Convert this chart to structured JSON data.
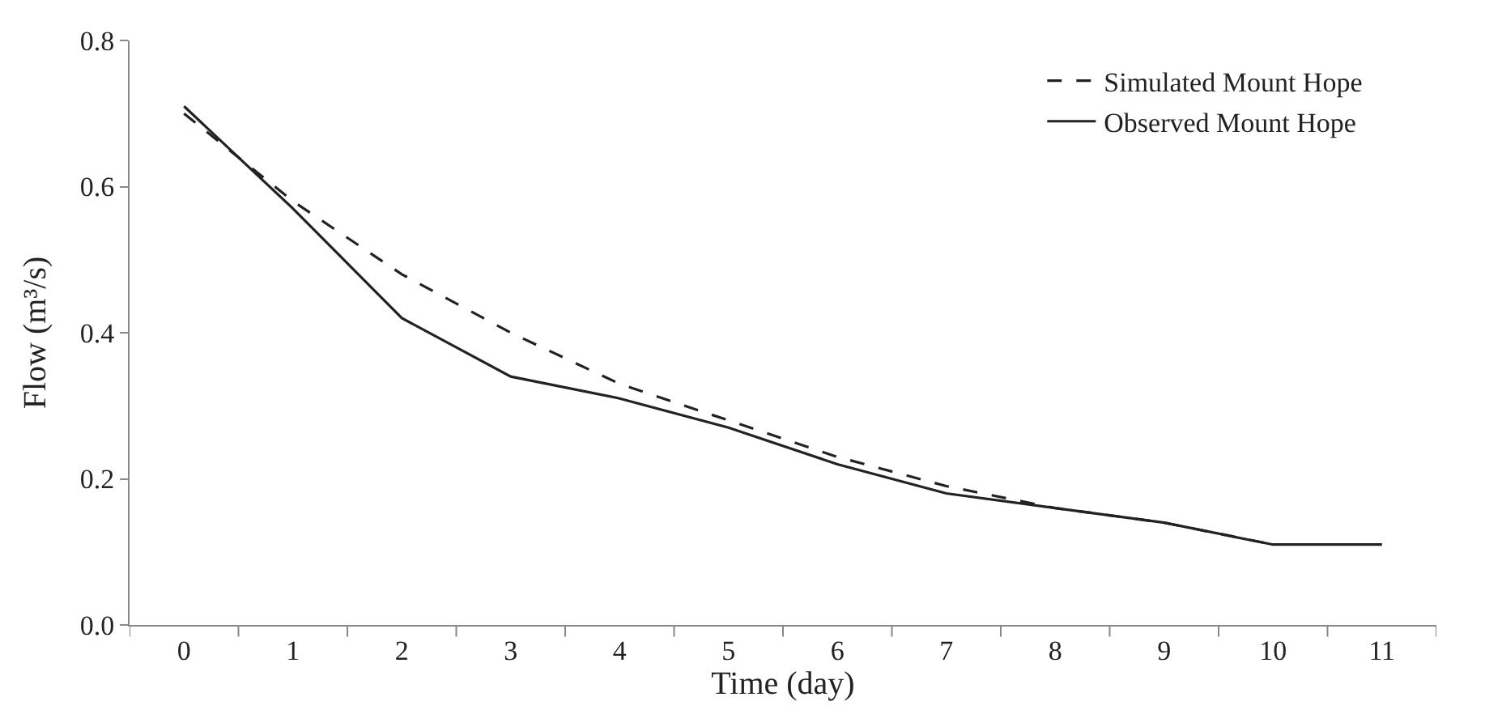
{
  "chart_data": {
    "type": "line",
    "xlabel": "Time (day)",
    "ylabel": "Flow (m³/s)",
    "categories": [
      "0",
      "1",
      "2",
      "3",
      "4",
      "5",
      "6",
      "7",
      "8",
      "9",
      "10",
      "11"
    ],
    "series": [
      {
        "name": "Simulated Mount Hope",
        "color": "#222222",
        "line_style": "dashed",
        "values": [
          0.7,
          0.58,
          0.48,
          0.4,
          0.33,
          0.28,
          0.23,
          0.19,
          0.16,
          0.14,
          0.11,
          null
        ]
      },
      {
        "name": "Observed Mount Hope",
        "color": "#222222",
        "line_style": "solid",
        "values": [
          0.71,
          0.57,
          0.42,
          0.34,
          0.31,
          0.27,
          0.22,
          0.18,
          0.16,
          0.14,
          0.11,
          0.11
        ]
      }
    ],
    "ylim": [
      0,
      0.8
    ],
    "yticks": [
      {
        "value": 0,
        "label": "0.0"
      },
      {
        "value": 0.2,
        "label": "0.2"
      },
      {
        "value": 0.4,
        "label": "0.4"
      },
      {
        "value": 0.6,
        "label": "0.6"
      },
      {
        "value": 0.8,
        "label": "0.8"
      }
    ],
    "grid": false,
    "legend": "top right",
    "marker": "none"
  }
}
